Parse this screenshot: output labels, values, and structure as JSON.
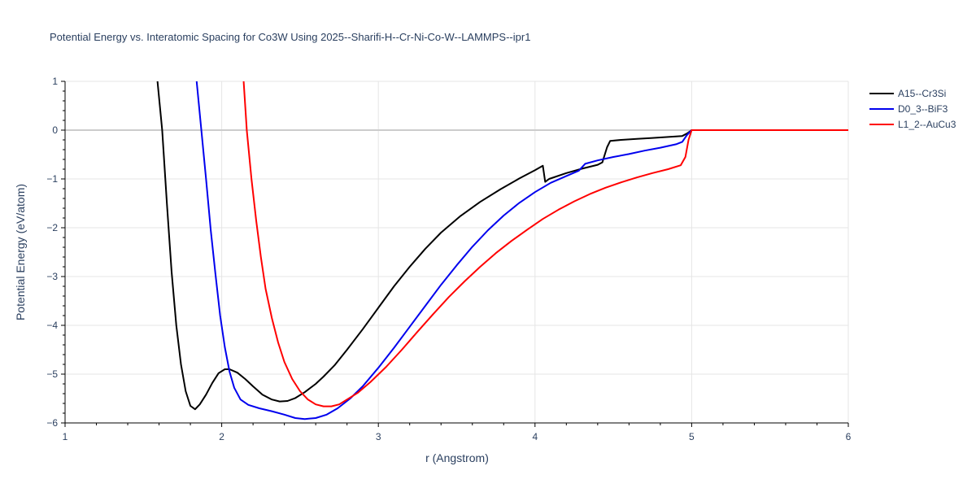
{
  "chart_data": {
    "type": "line",
    "title": "Potential Energy vs. Interatomic Spacing for Co3W Using 2025--Sharifi-H--Cr-Ni-Co-W--LAMMPS--ipr1",
    "xlabel": "r (Angstrom)",
    "ylabel": "Potential Energy (eV/atom)",
    "xlim": [
      1,
      6
    ],
    "ylim": [
      -6,
      1
    ],
    "xticks": [
      1,
      2,
      3,
      4,
      5,
      6
    ],
    "yticks": [
      1,
      0,
      -1,
      -2,
      -3,
      -4,
      -5,
      -6
    ],
    "xtick_labels": [
      "1",
      "2",
      "3",
      "4",
      "5",
      "6"
    ],
    "ytick_labels": [
      "1",
      "0",
      "−1",
      "−2",
      "−3",
      "−4",
      "−5",
      "−6"
    ],
    "grid": true,
    "legend_position": "top-right",
    "series": [
      {
        "name": "A15--Cr3Si",
        "color": "#000000",
        "points": [
          [
            1.59,
            1.0
          ],
          [
            1.62,
            0.0
          ],
          [
            1.65,
            -1.5
          ],
          [
            1.68,
            -2.9
          ],
          [
            1.71,
            -4.0
          ],
          [
            1.74,
            -4.8
          ],
          [
            1.77,
            -5.35
          ],
          [
            1.8,
            -5.65
          ],
          [
            1.83,
            -5.72
          ],
          [
            1.86,
            -5.62
          ],
          [
            1.9,
            -5.42
          ],
          [
            1.94,
            -5.18
          ],
          [
            1.98,
            -4.98
          ],
          [
            2.02,
            -4.9
          ],
          [
            2.05,
            -4.9
          ],
          [
            2.1,
            -4.97
          ],
          [
            2.15,
            -5.1
          ],
          [
            2.2,
            -5.25
          ],
          [
            2.26,
            -5.42
          ],
          [
            2.32,
            -5.52
          ],
          [
            2.37,
            -5.56
          ],
          [
            2.42,
            -5.55
          ],
          [
            2.47,
            -5.49
          ],
          [
            2.53,
            -5.37
          ],
          [
            2.6,
            -5.2
          ],
          [
            2.65,
            -5.05
          ],
          [
            2.72,
            -4.82
          ],
          [
            2.8,
            -4.5
          ],
          [
            2.9,
            -4.08
          ],
          [
            3.0,
            -3.64
          ],
          [
            3.1,
            -3.2
          ],
          [
            3.2,
            -2.8
          ],
          [
            3.3,
            -2.43
          ],
          [
            3.4,
            -2.1
          ],
          [
            3.52,
            -1.77
          ],
          [
            3.65,
            -1.47
          ],
          [
            3.78,
            -1.21
          ],
          [
            3.9,
            -0.99
          ],
          [
            4.0,
            -0.82
          ],
          [
            4.05,
            -0.73
          ],
          [
            4.065,
            -1.06
          ],
          [
            4.09,
            -1.0
          ],
          [
            4.2,
            -0.88
          ],
          [
            4.3,
            -0.79
          ],
          [
            4.4,
            -0.71
          ],
          [
            4.43,
            -0.66
          ],
          [
            4.46,
            -0.35
          ],
          [
            4.48,
            -0.22
          ],
          [
            4.55,
            -0.2
          ],
          [
            4.65,
            -0.18
          ],
          [
            4.75,
            -0.16
          ],
          [
            4.85,
            -0.14
          ],
          [
            4.94,
            -0.12
          ],
          [
            4.97,
            -0.07
          ],
          [
            5.0,
            0.0
          ],
          [
            6.0,
            0.0
          ]
        ]
      },
      {
        "name": "D0_3--BiF3",
        "color": "#0000ee",
        "points": [
          [
            1.84,
            1.0
          ],
          [
            1.87,
            0.0
          ],
          [
            1.9,
            -1.0
          ],
          [
            1.93,
            -2.05
          ],
          [
            1.96,
            -2.95
          ],
          [
            1.99,
            -3.8
          ],
          [
            2.02,
            -4.45
          ],
          [
            2.05,
            -4.95
          ],
          [
            2.08,
            -5.28
          ],
          [
            2.12,
            -5.52
          ],
          [
            2.17,
            -5.63
          ],
          [
            2.24,
            -5.7
          ],
          [
            2.32,
            -5.76
          ],
          [
            2.4,
            -5.83
          ],
          [
            2.47,
            -5.9
          ],
          [
            2.53,
            -5.92
          ],
          [
            2.6,
            -5.9
          ],
          [
            2.67,
            -5.83
          ],
          [
            2.74,
            -5.7
          ],
          [
            2.82,
            -5.5
          ],
          [
            2.9,
            -5.25
          ],
          [
            3.0,
            -4.87
          ],
          [
            3.1,
            -4.46
          ],
          [
            3.2,
            -4.03
          ],
          [
            3.3,
            -3.6
          ],
          [
            3.4,
            -3.17
          ],
          [
            3.5,
            -2.77
          ],
          [
            3.6,
            -2.39
          ],
          [
            3.7,
            -2.05
          ],
          [
            3.8,
            -1.75
          ],
          [
            3.9,
            -1.49
          ],
          [
            4.0,
            -1.27
          ],
          [
            4.1,
            -1.08
          ],
          [
            4.2,
            -0.94
          ],
          [
            4.28,
            -0.83
          ],
          [
            4.32,
            -0.69
          ],
          [
            4.4,
            -0.62
          ],
          [
            4.5,
            -0.55
          ],
          [
            4.6,
            -0.49
          ],
          [
            4.7,
            -0.42
          ],
          [
            4.8,
            -0.36
          ],
          [
            4.9,
            -0.29
          ],
          [
            4.94,
            -0.24
          ],
          [
            4.97,
            -0.1
          ],
          [
            5.0,
            0.0
          ],
          [
            6.0,
            0.0
          ]
        ]
      },
      {
        "name": "L1_2--AuCu3",
        "color": "#ff0000",
        "points": [
          [
            2.14,
            1.0
          ],
          [
            2.16,
            0.0
          ],
          [
            2.19,
            -1.0
          ],
          [
            2.22,
            -1.85
          ],
          [
            2.25,
            -2.6
          ],
          [
            2.28,
            -3.25
          ],
          [
            2.32,
            -3.85
          ],
          [
            2.36,
            -4.35
          ],
          [
            2.4,
            -4.75
          ],
          [
            2.45,
            -5.1
          ],
          [
            2.5,
            -5.35
          ],
          [
            2.55,
            -5.52
          ],
          [
            2.6,
            -5.62
          ],
          [
            2.65,
            -5.66
          ],
          [
            2.7,
            -5.66
          ],
          [
            2.75,
            -5.62
          ],
          [
            2.8,
            -5.52
          ],
          [
            2.87,
            -5.38
          ],
          [
            2.95,
            -5.16
          ],
          [
            3.05,
            -4.85
          ],
          [
            3.15,
            -4.5
          ],
          [
            3.25,
            -4.13
          ],
          [
            3.35,
            -3.77
          ],
          [
            3.45,
            -3.42
          ],
          [
            3.55,
            -3.1
          ],
          [
            3.65,
            -2.8
          ],
          [
            3.75,
            -2.52
          ],
          [
            3.85,
            -2.27
          ],
          [
            3.95,
            -2.04
          ],
          [
            4.05,
            -1.82
          ],
          [
            4.15,
            -1.63
          ],
          [
            4.25,
            -1.46
          ],
          [
            4.35,
            -1.31
          ],
          [
            4.45,
            -1.18
          ],
          [
            4.55,
            -1.07
          ],
          [
            4.65,
            -0.97
          ],
          [
            4.75,
            -0.88
          ],
          [
            4.85,
            -0.8
          ],
          [
            4.93,
            -0.72
          ],
          [
            4.96,
            -0.55
          ],
          [
            4.98,
            -0.2
          ],
          [
            5.0,
            0.0
          ],
          [
            6.0,
            0.0
          ]
        ]
      }
    ]
  }
}
